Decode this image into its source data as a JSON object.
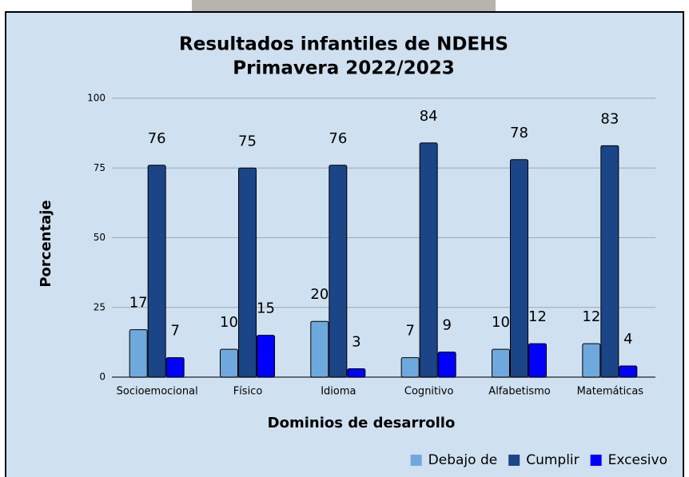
{
  "chart_data": {
    "type": "bar",
    "title": "Resultados infantiles de NDEHS",
    "subtitle": "Primavera 2022/2023",
    "x_label": "Dominios de desarrollo",
    "y_label": "Porcentaje",
    "categories": [
      "Socioemocional",
      "Físico",
      "Idioma",
      "Cognitivo",
      "Alfabetismo",
      "Matemáticas"
    ],
    "series": [
      {
        "name": "Debajo de",
        "color": "#6fa8dc",
        "values": [
          17,
          10,
          20,
          7,
          10,
          12
        ]
      },
      {
        "name": "Cumplir",
        "color": "#1c4587",
        "values": [
          76,
          75,
          76,
          84,
          78,
          83
        ]
      },
      {
        "name": "Excesivo",
        "color": "#0000ff",
        "values": [
          7,
          15,
          3,
          9,
          12,
          4
        ]
      }
    ],
    "ylim": [
      0,
      100
    ],
    "yticks": [
      0,
      25,
      50,
      75,
      100
    ],
    "grid": true,
    "legend": "bottom-right"
  }
}
